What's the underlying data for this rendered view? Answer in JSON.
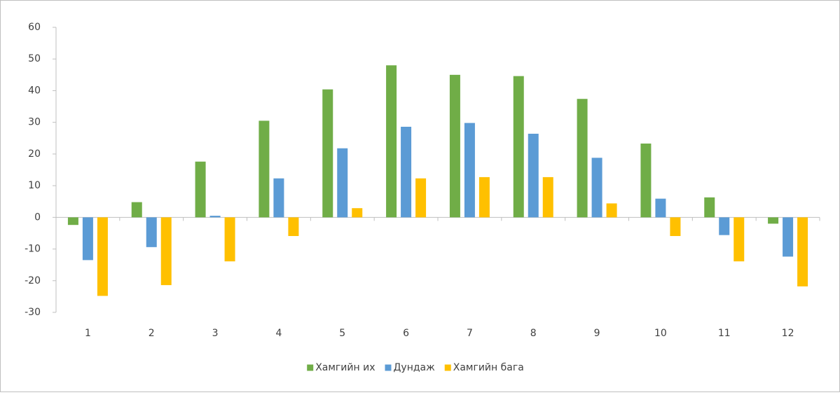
{
  "chart_data": {
    "type": "bar",
    "categories": [
      "1",
      "2",
      "3",
      "4",
      "5",
      "6",
      "7",
      "8",
      "9",
      "10",
      "11",
      "12"
    ],
    "series": [
      {
        "name": "Хамгийн их",
        "color": "#70ad47",
        "values": [
          -2.4,
          4.8,
          17.6,
          30.5,
          40.4,
          48,
          45,
          44.6,
          37.4,
          23.3,
          6.3,
          -2
        ]
      },
      {
        "name": "Дундаж",
        "color": "#5b9bd5",
        "values": [
          -13.5,
          -9.4,
          0.5,
          12.3,
          21.8,
          28.6,
          29.8,
          26.4,
          18.8,
          5.9,
          -5.6,
          -12.4
        ]
      },
      {
        "name": "Хамгийн бага",
        "color": "#ffc000",
        "values": [
          -24.8,
          -21.4,
          -13.9,
          -5.9,
          2.9,
          12.3,
          12.7,
          12.7,
          4.4,
          -5.9,
          -13.9,
          -21.8
        ]
      }
    ],
    "ylim": [
      -30,
      60
    ],
    "yticks": [
      -30,
      -20,
      -10,
      0,
      10,
      20,
      30,
      40,
      50,
      60
    ],
    "legend": "bottom"
  }
}
